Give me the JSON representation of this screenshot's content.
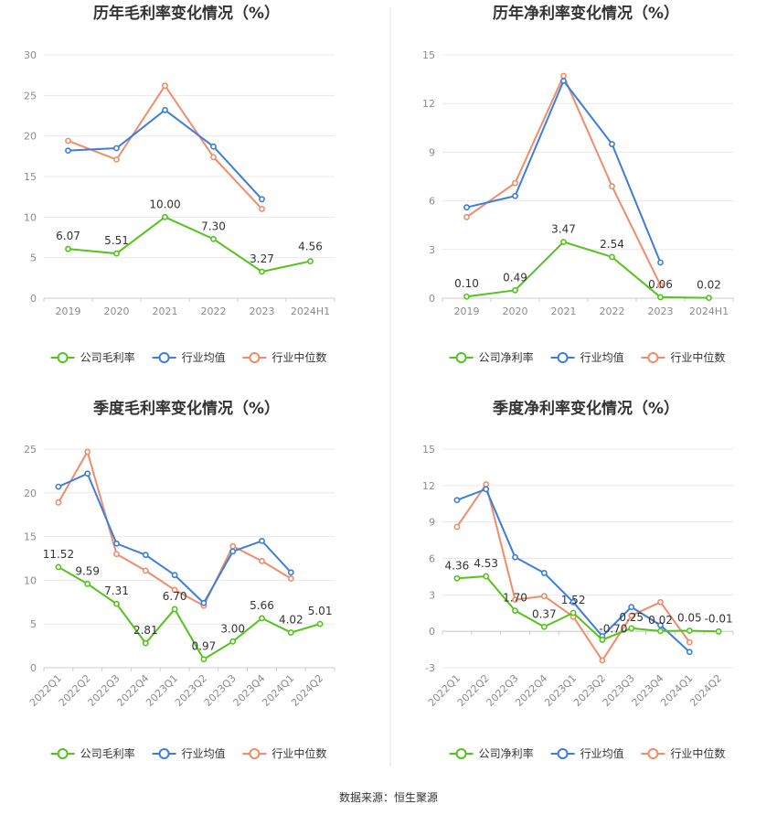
{
  "source": "数据来源：恒生聚源",
  "colors": {
    "company": "#52c41a",
    "industry_avg": "#3d7ddb",
    "industry_median": "#f08c6a",
    "grid": "#e8e8e8",
    "axis": "#cccccc",
    "divider": "#e6e6e6"
  },
  "chart_data": [
    {
      "type": "line",
      "title": "历年毛利率变化情况（%）",
      "categories": [
        "2019",
        "2020",
        "2021",
        "2022",
        "2023",
        "2024H1"
      ],
      "ylim": [
        0,
        30
      ],
      "yticks": [
        0,
        5,
        10,
        15,
        20,
        25,
        30
      ],
      "ytick_labels": [
        "0",
        "5",
        "10",
        "15",
        "20",
        "25",
        "30"
      ],
      "grid": true,
      "legend_position": "bottom",
      "series": [
        {
          "name": "公司毛利率",
          "color_key": "company",
          "values": [
            6.07,
            5.51,
            10.0,
            7.3,
            3.27,
            4.56
          ],
          "labels": [
            "6.07",
            "5.51",
            "10.00",
            "7.30",
            "3.27",
            "4.56"
          ]
        },
        {
          "name": "行业均值",
          "color_key": "industry_avg",
          "values": [
            18.2,
            18.5,
            23.2,
            18.7,
            12.2,
            null
          ]
        },
        {
          "name": "行业中位数",
          "color_key": "industry_median",
          "values": [
            19.4,
            17.1,
            26.2,
            17.4,
            11.0,
            null
          ]
        }
      ]
    },
    {
      "type": "line",
      "title": "历年净利率变化情况（%）",
      "categories": [
        "2019",
        "2020",
        "2021",
        "2022",
        "2023",
        "2024H1"
      ],
      "ylim": [
        0,
        15
      ],
      "yticks": [
        0,
        3,
        6,
        9,
        12,
        15
      ],
      "ytick_labels": [
        "0",
        "3",
        "6",
        "9",
        "12",
        "15"
      ],
      "grid": true,
      "legend_position": "bottom",
      "series": [
        {
          "name": "公司净利率",
          "color_key": "company",
          "values": [
            0.1,
            0.49,
            3.47,
            2.54,
            0.06,
            0.02
          ],
          "labels": [
            "0.10",
            "0.49",
            "3.47",
            "2.54",
            "0.06",
            "0.02"
          ]
        },
        {
          "name": "行业均值",
          "color_key": "industry_avg",
          "values": [
            5.6,
            6.3,
            13.4,
            9.5,
            2.2,
            null
          ]
        },
        {
          "name": "行业中位数",
          "color_key": "industry_median",
          "values": [
            5.0,
            7.1,
            13.7,
            6.9,
            0.8,
            null
          ]
        }
      ]
    },
    {
      "type": "line",
      "title": "季度毛利率变化情况（%）",
      "categories": [
        "2022Q1",
        "2022Q2",
        "2022Q3",
        "2022Q4",
        "2023Q1",
        "2023Q2",
        "2023Q3",
        "2023Q4",
        "2024Q1",
        "2024Q2"
      ],
      "ylim": [
        0,
        25
      ],
      "yticks": [
        0,
        5,
        10,
        15,
        20,
        25
      ],
      "ytick_labels": [
        "0",
        "5",
        "10",
        "15",
        "20",
        "25"
      ],
      "grid": true,
      "legend_position": "bottom",
      "series": [
        {
          "name": "公司毛利率",
          "color_key": "company",
          "values": [
            11.52,
            9.59,
            7.31,
            2.81,
            6.7,
            0.97,
            3.0,
            5.66,
            4.02,
            5.01
          ],
          "labels": [
            "11.52",
            "9.59",
            "7.31",
            "2.81",
            "6.70",
            "0.97",
            "3.00",
            "5.66",
            "4.02",
            "5.01"
          ]
        },
        {
          "name": "行业均值",
          "color_key": "industry_avg",
          "values": [
            20.7,
            22.2,
            14.2,
            12.9,
            10.6,
            7.4,
            13.3,
            14.5,
            10.9,
            null
          ]
        },
        {
          "name": "行业中位数",
          "color_key": "industry_median",
          "values": [
            18.9,
            24.7,
            13.0,
            11.1,
            8.9,
            7.1,
            13.9,
            12.2,
            10.2,
            null
          ]
        }
      ]
    },
    {
      "type": "line",
      "title": "季度净利率变化情况（%）",
      "categories": [
        "2022Q1",
        "2022Q2",
        "2022Q3",
        "2022Q4",
        "2023Q1",
        "2023Q2",
        "2023Q3",
        "2023Q4",
        "2024Q1",
        "2024Q2"
      ],
      "ylim": [
        -3,
        15
      ],
      "yticks": [
        -3,
        0,
        3,
        6,
        9,
        12,
        15
      ],
      "ytick_labels": [
        "-3",
        "0",
        "3",
        "6",
        "9",
        "12",
        "15"
      ],
      "grid": true,
      "legend_position": "bottom",
      "series": [
        {
          "name": "公司净利率",
          "color_key": "company",
          "values": [
            4.36,
            4.53,
            1.7,
            0.37,
            1.52,
            -0.7,
            0.25,
            0.02,
            0.05,
            -0.01
          ],
          "labels": [
            "4.36",
            "4.53",
            "1.70",
            "0.37",
            "1.52",
            "-0.70",
            "0.25",
            "0.02",
            "0.05",
            "-0.01"
          ]
        },
        {
          "name": "行业均值",
          "color_key": "industry_avg",
          "values": [
            10.8,
            11.7,
            6.1,
            4.8,
            2.4,
            -0.4,
            2.0,
            0.5,
            -1.7,
            null
          ]
        },
        {
          "name": "行业中位数",
          "color_key": "industry_median",
          "values": [
            8.6,
            12.1,
            2.6,
            2.9,
            1.2,
            -2.4,
            1.3,
            2.4,
            -0.9,
            null
          ]
        }
      ]
    }
  ]
}
